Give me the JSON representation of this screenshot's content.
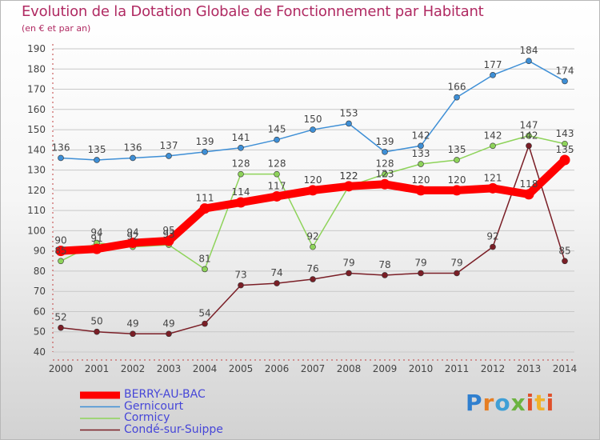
{
  "title": "Evolution de la Dotation Globale de Fonctionnement par Habitant",
  "subtitle": "(en € et par an)",
  "logo": "Proxiti",
  "colors": {
    "title": "#b02a62",
    "grid": "#c8c8c8",
    "legend_text": "#4646d8"
  },
  "chart_data": {
    "type": "line",
    "title": "Evolution de la Dotation Globale de Fonctionnement par Habitant",
    "ylabel": "(en € et par an)",
    "xlabel": "",
    "ylim": [
      40,
      190
    ],
    "yticks": [
      40,
      50,
      60,
      70,
      80,
      90,
      100,
      110,
      120,
      130,
      140,
      150,
      160,
      170,
      180,
      190
    ],
    "x": [
      2000,
      2001,
      2002,
      2003,
      2004,
      2005,
      2006,
      2007,
      2008,
      2009,
      2010,
      2011,
      2012,
      2013,
      2014
    ],
    "legend_position": "bottom-left",
    "series": [
      {
        "name": "BERRY-AU-BAC",
        "color": "#ff0000",
        "values": [
          90,
          91,
          94,
          95,
          111,
          114,
          117,
          120,
          122,
          123,
          120,
          120,
          121,
          118,
          135
        ]
      },
      {
        "name": "Gernicourt",
        "color": "#3e8fd6",
        "values": [
          136,
          135,
          136,
          137,
          139,
          141,
          145,
          150,
          153,
          139,
          142,
          166,
          177,
          184,
          174
        ]
      },
      {
        "name": "Cormicy",
        "color": "#8ed35a",
        "values": [
          85,
          94,
          92,
          93,
          81,
          128,
          128,
          92,
          122,
          128,
          133,
          135,
          142,
          147,
          143
        ]
      },
      {
        "name": "Condé-sur-Suippe",
        "color": "#7a1e26",
        "values": [
          52,
          50,
          49,
          49,
          54,
          73,
          74,
          76,
          79,
          78,
          79,
          79,
          92,
          142,
          85
        ]
      }
    ]
  }
}
